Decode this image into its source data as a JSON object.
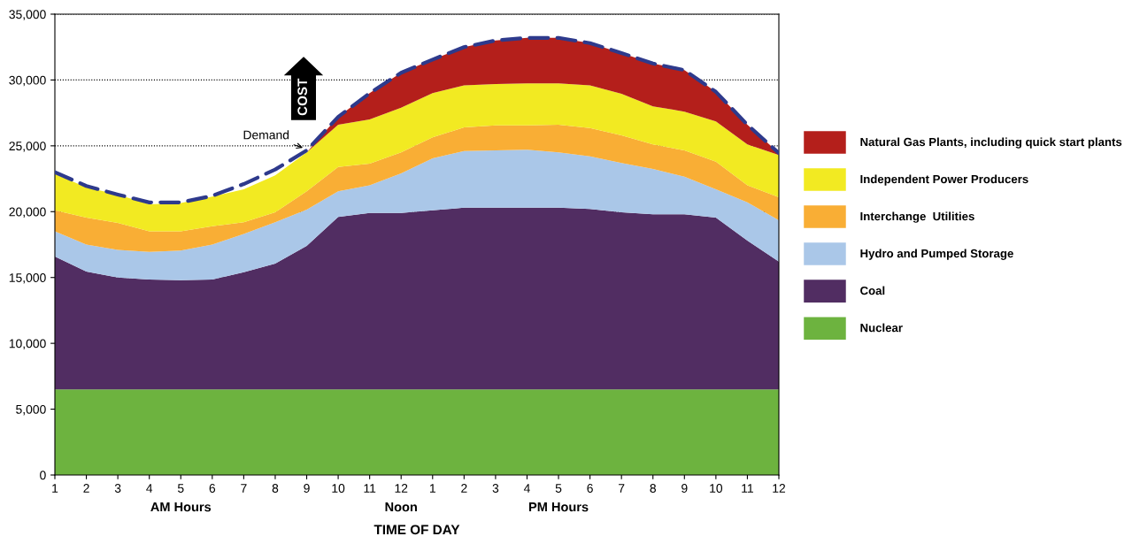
{
  "chart_data": {
    "type": "area",
    "stacked": true,
    "xlabel": "TIME OF DAY",
    "categories": [
      "1",
      "2",
      "3",
      "4",
      "5",
      "6",
      "7",
      "8",
      "9",
      "10",
      "11",
      "12",
      "1",
      "2",
      "3",
      "4",
      "5",
      "6",
      "7",
      "8",
      "9",
      "10",
      "11",
      "12"
    ],
    "series": [
      {
        "name": "Nuclear",
        "color": "#6db33f",
        "values": [
          6500,
          6500,
          6500,
          6500,
          6500,
          6500,
          6500,
          6500,
          6500,
          6500,
          6500,
          6500,
          6500,
          6500,
          6500,
          6500,
          6500,
          6500,
          6500,
          6500,
          6500,
          6500,
          6500,
          6500
        ]
      },
      {
        "name": "Coal",
        "color": "#512d62",
        "values": [
          10100,
          8950,
          8500,
          8350,
          8300,
          8350,
          8900,
          9550,
          10900,
          13100,
          13400,
          13400,
          13600,
          13800,
          13800,
          13800,
          13800,
          13700,
          13450,
          13300,
          13300,
          13050,
          11300,
          9700
        ]
      },
      {
        "name": "Hydro and Pumped Storage",
        "color": "#aac7e8",
        "values": [
          1900,
          2050,
          2100,
          2100,
          2250,
          2650,
          2900,
          3150,
          2750,
          1950,
          2100,
          3000,
          3950,
          4300,
          4350,
          4400,
          4200,
          4000,
          3750,
          3450,
          2850,
          2150,
          2900,
          3150
        ]
      },
      {
        "name": "Interchange  Utilities",
        "color": "#f9ae35",
        "values": [
          1600,
          2050,
          2050,
          1550,
          1450,
          1400,
          900,
          750,
          1400,
          1850,
          1650,
          1600,
          1600,
          1800,
          1900,
          1850,
          2100,
          2150,
          2100,
          1850,
          2000,
          2100,
          1300,
          1750
        ]
      },
      {
        "name": "Independent Power Producers",
        "color": "#f2ea22",
        "values": [
          2750,
          2300,
          2150,
          2050,
          2150,
          2250,
          2500,
          2800,
          2950,
          3200,
          3350,
          3400,
          3350,
          3200,
          3150,
          3200,
          3150,
          3250,
          3150,
          2900,
          2950,
          3050,
          3100,
          3200
        ]
      },
      {
        "name": "Natural Gas Plants, including quick start plants",
        "color": "#b41f1b",
        "values": [
          0,
          0,
          0,
          0,
          0,
          0,
          0,
          0,
          0,
          600,
          2000,
          2650,
          2550,
          2900,
          3300,
          3450,
          3450,
          3200,
          3100,
          3250,
          3150,
          2250,
          1500,
          150
        ]
      },
      {
        "name": "Demand",
        "type": "line",
        "line_style": "dashed",
        "color": "#2e3a8c",
        "values": [
          23000,
          21950,
          21300,
          20700,
          20700,
          21200,
          22100,
          23200,
          24650,
          27200,
          29000,
          30550,
          31550,
          32500,
          33000,
          33200,
          33200,
          32800,
          32050,
          31250,
          30750,
          29100,
          26600,
          24450
        ]
      }
    ],
    "ylim": [
      0,
      35000
    ],
    "yticks": [
      0,
      {
        "value": 5000,
        "label": "5,000"
      },
      {
        "value": 10000,
        "label": "10,000"
      },
      {
        "value": 15000,
        "label": "15,000"
      },
      {
        "value": 20000,
        "label": "20,000"
      },
      {
        "value": 25000,
        "label": "25,000"
      },
      {
        "value": 30000,
        "label": "30,000"
      },
      {
        "value": 35000,
        "label": "35,000"
      }
    ],
    "grid": "y",
    "legend": "right",
    "annotations": [
      "AM Hours",
      "Noon",
      "PM Hours",
      "COST"
    ]
  }
}
